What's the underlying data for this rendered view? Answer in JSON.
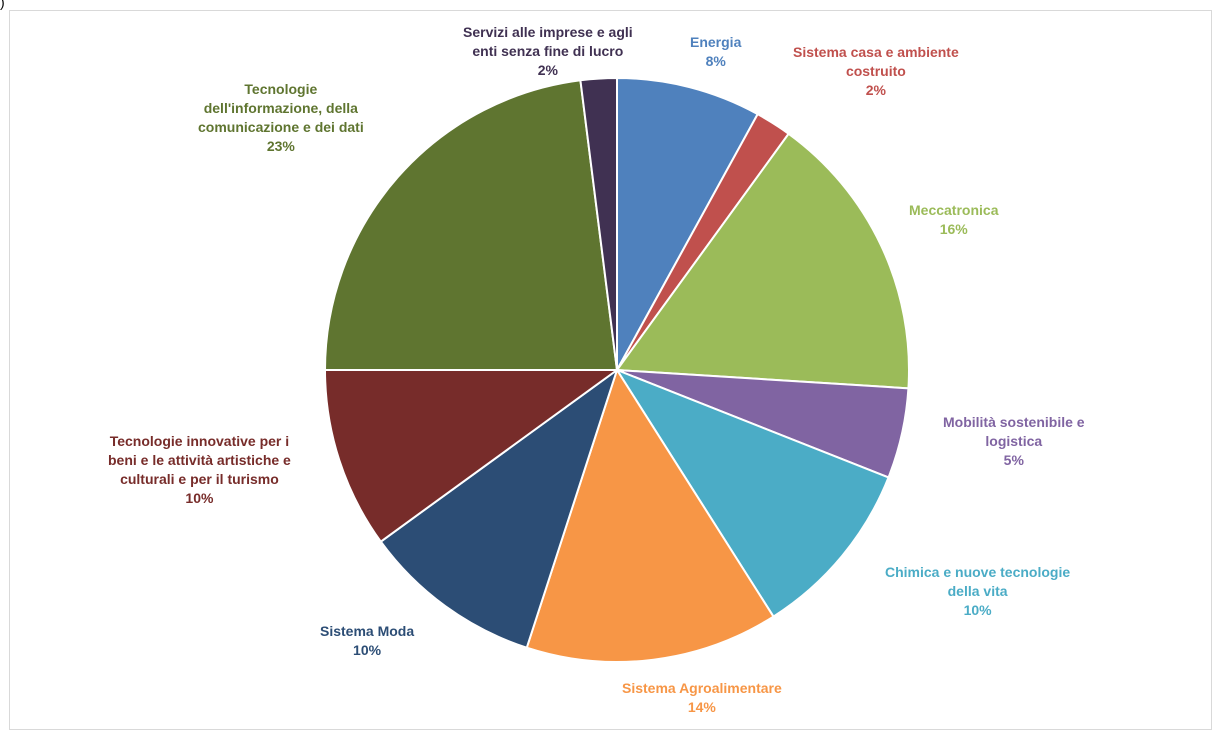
{
  "corner_text": ")",
  "chart_data": {
    "type": "pie",
    "title": "",
    "start_angle_deg": 0,
    "direction": "clockwise",
    "slices": [
      {
        "label": [
          "Energia"
        ],
        "value": 8,
        "pct": "8%",
        "color": "#4f81bd"
      },
      {
        "label": [
          "Sistema casa e ambiente",
          "costruito"
        ],
        "value": 2,
        "pct": "2%",
        "color": "#c0504d"
      },
      {
        "label": [
          "Meccatronica"
        ],
        "value": 16,
        "pct": "16%",
        "color": "#9bbb59"
      },
      {
        "label": [
          "Mobilità sostenibile e",
          "logistica"
        ],
        "value": 5,
        "pct": "5%",
        "color": "#8064a2"
      },
      {
        "label": [
          "Chimica e nuove tecnologie",
          "della vita"
        ],
        "value": 10,
        "pct": "10%",
        "color": "#4bacc6"
      },
      {
        "label": [
          "Sistema Agroalimentare"
        ],
        "value": 14,
        "pct": "14%",
        "color": "#f79646"
      },
      {
        "label": [
          "Sistema Moda"
        ],
        "value": 10,
        "pct": "10%",
        "color": "#2c4d75"
      },
      {
        "label": [
          "Tecnologie innovative per i",
          "beni e le attività artistiche e",
          "culturali e per il turismo"
        ],
        "value": 10,
        "pct": "10%",
        "color": "#772c2a"
      },
      {
        "label": [
          "Tecnologie",
          "dell'informazione, della",
          "comunicazione e dei dati"
        ],
        "value": 23,
        "pct": "23%",
        "color": "#5f7530"
      },
      {
        "label": [
          "Servizi alle imprese e agli",
          "enti senza fine di lucro"
        ],
        "value": 2,
        "pct": "2%",
        "color": "#403152"
      }
    ]
  }
}
